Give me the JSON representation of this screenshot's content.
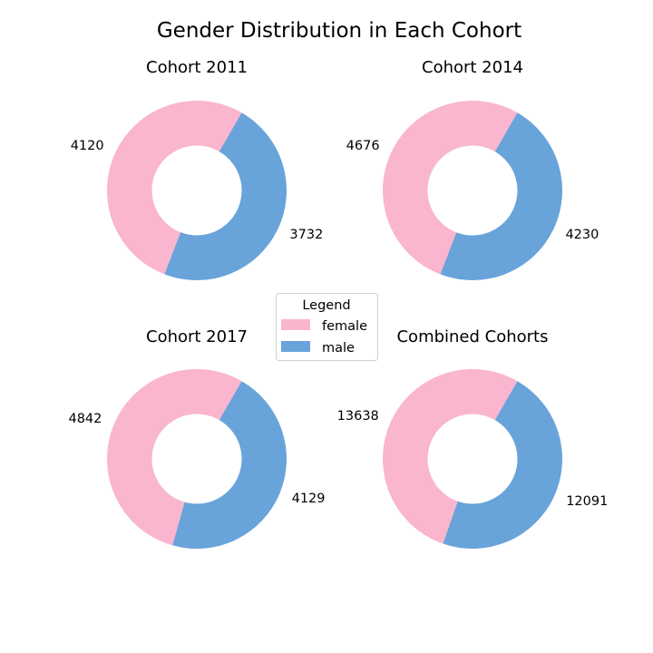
{
  "figure": {
    "title": "Gender Distribution in Each Cohort"
  },
  "legend": {
    "title": "Legend",
    "placement": "center",
    "items": [
      {
        "label": "female",
        "color": "#f9b6ce"
      },
      {
        "label": "male",
        "color": "#68a3da"
      }
    ]
  },
  "chart_data": [
    {
      "type": "pie",
      "style": "donut",
      "title": "Cohort 2011",
      "labels": [
        "female",
        "male"
      ],
      "values": [
        4120,
        3732
      ],
      "colors": [
        "#f9b6ce",
        "#68a3da"
      ]
    },
    {
      "type": "pie",
      "style": "donut",
      "title": "Cohort 2014",
      "labels": [
        "female",
        "male"
      ],
      "values": [
        4676,
        4230
      ],
      "colors": [
        "#f9b6ce",
        "#68a3da"
      ]
    },
    {
      "type": "pie",
      "style": "donut",
      "title": "Cohort 2017",
      "labels": [
        "female",
        "male"
      ],
      "values": [
        4842,
        4129
      ],
      "colors": [
        "#f9b6ce",
        "#68a3da"
      ]
    },
    {
      "type": "pie",
      "style": "donut",
      "title": "Combined Cohorts",
      "labels": [
        "female",
        "male"
      ],
      "values": [
        13638,
        12091
      ],
      "colors": [
        "#f9b6ce",
        "#68a3da"
      ]
    }
  ]
}
